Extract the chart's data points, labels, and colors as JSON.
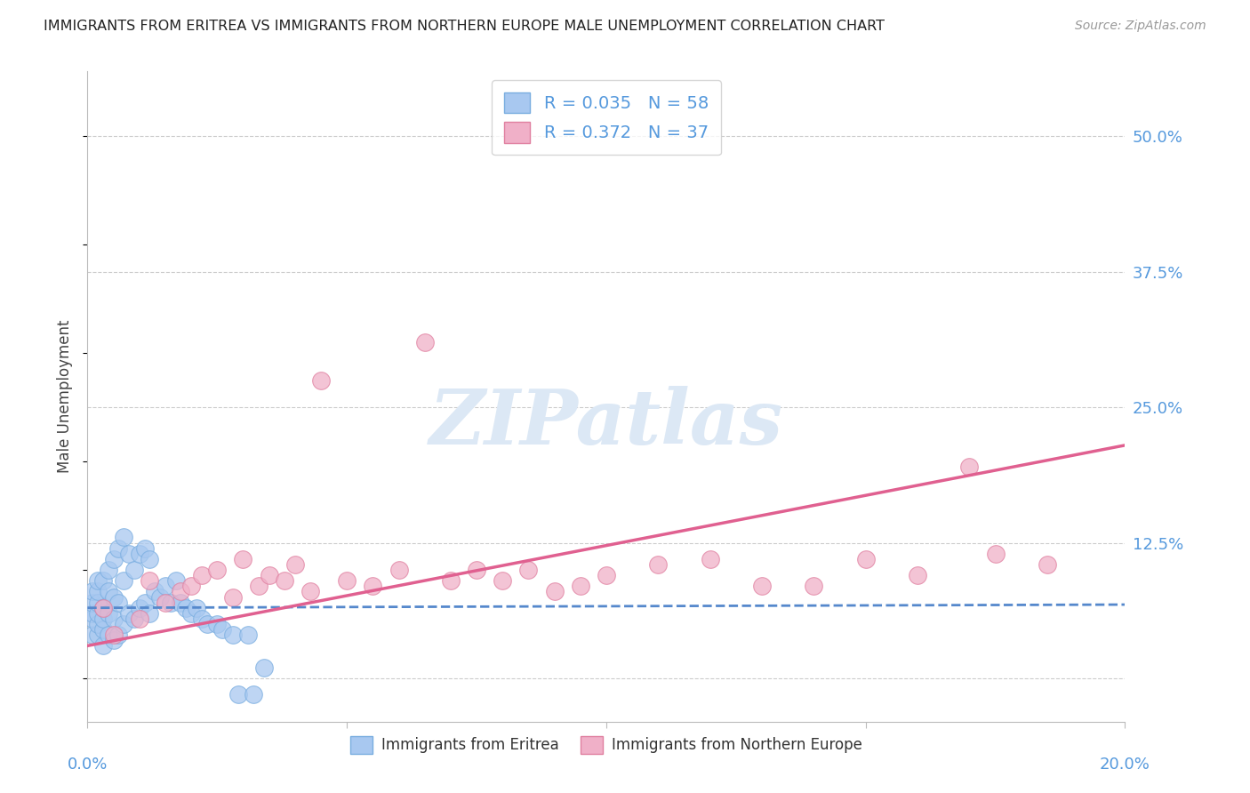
{
  "title": "IMMIGRANTS FROM ERITREA VS IMMIGRANTS FROM NORTHERN EUROPE MALE UNEMPLOYMENT CORRELATION CHART",
  "source": "Source: ZipAtlas.com",
  "ylabel": "Male Unemployment",
  "y_ticks": [
    0.0,
    0.125,
    0.25,
    0.375,
    0.5
  ],
  "y_tick_labels": [
    "",
    "12.5%",
    "25.0%",
    "37.5%",
    "50.0%"
  ],
  "x_range": [
    0.0,
    0.2
  ],
  "y_range": [
    -0.04,
    0.56
  ],
  "series1_label": "Immigrants from Eritrea",
  "series1_R": "0.035",
  "series1_N": "58",
  "series1_color": "#a8c8f0",
  "series1_edge_color": "#7aaee0",
  "series1_line_color": "#5588cc",
  "series2_label": "Immigrants from Northern Europe",
  "series2_R": "0.372",
  "series2_N": "37",
  "series2_color": "#f0b0c8",
  "series2_edge_color": "#e080a0",
  "series2_line_color": "#e06090",
  "background_color": "#ffffff",
  "watermark_color": "#dce8f5",
  "grid_color": "#cccccc",
  "axis_label_color": "#5599dd",
  "title_color": "#222222",
  "source_color": "#999999",
  "series1_x": [
    0.001,
    0.001,
    0.001,
    0.001,
    0.001,
    0.002,
    0.002,
    0.002,
    0.002,
    0.002,
    0.002,
    0.003,
    0.003,
    0.003,
    0.003,
    0.003,
    0.004,
    0.004,
    0.004,
    0.004,
    0.005,
    0.005,
    0.005,
    0.005,
    0.006,
    0.006,
    0.006,
    0.007,
    0.007,
    0.007,
    0.008,
    0.008,
    0.009,
    0.009,
    0.01,
    0.01,
    0.011,
    0.011,
    0.012,
    0.012,
    0.013,
    0.014,
    0.015,
    0.016,
    0.017,
    0.018,
    0.019,
    0.02,
    0.021,
    0.022,
    0.023,
    0.025,
    0.026,
    0.028,
    0.029,
    0.031,
    0.032,
    0.034
  ],
  "series1_y": [
    0.04,
    0.055,
    0.06,
    0.07,
    0.08,
    0.04,
    0.05,
    0.06,
    0.07,
    0.08,
    0.09,
    0.03,
    0.045,
    0.055,
    0.065,
    0.09,
    0.04,
    0.06,
    0.08,
    0.1,
    0.035,
    0.055,
    0.075,
    0.11,
    0.04,
    0.07,
    0.12,
    0.05,
    0.09,
    0.13,
    0.06,
    0.115,
    0.055,
    0.1,
    0.065,
    0.115,
    0.07,
    0.12,
    0.06,
    0.11,
    0.08,
    0.075,
    0.085,
    0.07,
    0.09,
    0.07,
    0.065,
    0.06,
    0.065,
    0.055,
    0.05,
    0.05,
    0.045,
    0.04,
    -0.015,
    0.04,
    -0.015,
    0.01
  ],
  "series2_x": [
    0.003,
    0.005,
    0.01,
    0.012,
    0.015,
    0.018,
    0.02,
    0.022,
    0.025,
    0.028,
    0.03,
    0.033,
    0.035,
    0.038,
    0.04,
    0.043,
    0.045,
    0.05,
    0.055,
    0.06,
    0.065,
    0.07,
    0.075,
    0.08,
    0.085,
    0.09,
    0.095,
    0.1,
    0.11,
    0.12,
    0.13,
    0.14,
    0.15,
    0.16,
    0.17,
    0.175,
    0.185
  ],
  "series2_y": [
    0.065,
    0.04,
    0.055,
    0.09,
    0.07,
    0.08,
    0.085,
    0.095,
    0.1,
    0.075,
    0.11,
    0.085,
    0.095,
    0.09,
    0.105,
    0.08,
    0.275,
    0.09,
    0.085,
    0.1,
    0.31,
    0.09,
    0.1,
    0.09,
    0.1,
    0.08,
    0.085,
    0.095,
    0.105,
    0.11,
    0.085,
    0.085,
    0.11,
    0.095,
    0.195,
    0.115,
    0.105
  ],
  "line1_x": [
    0.0,
    0.2
  ],
  "line1_y": [
    0.065,
    0.068
  ],
  "line2_x": [
    0.0,
    0.2
  ],
  "line2_y": [
    0.03,
    0.215
  ]
}
